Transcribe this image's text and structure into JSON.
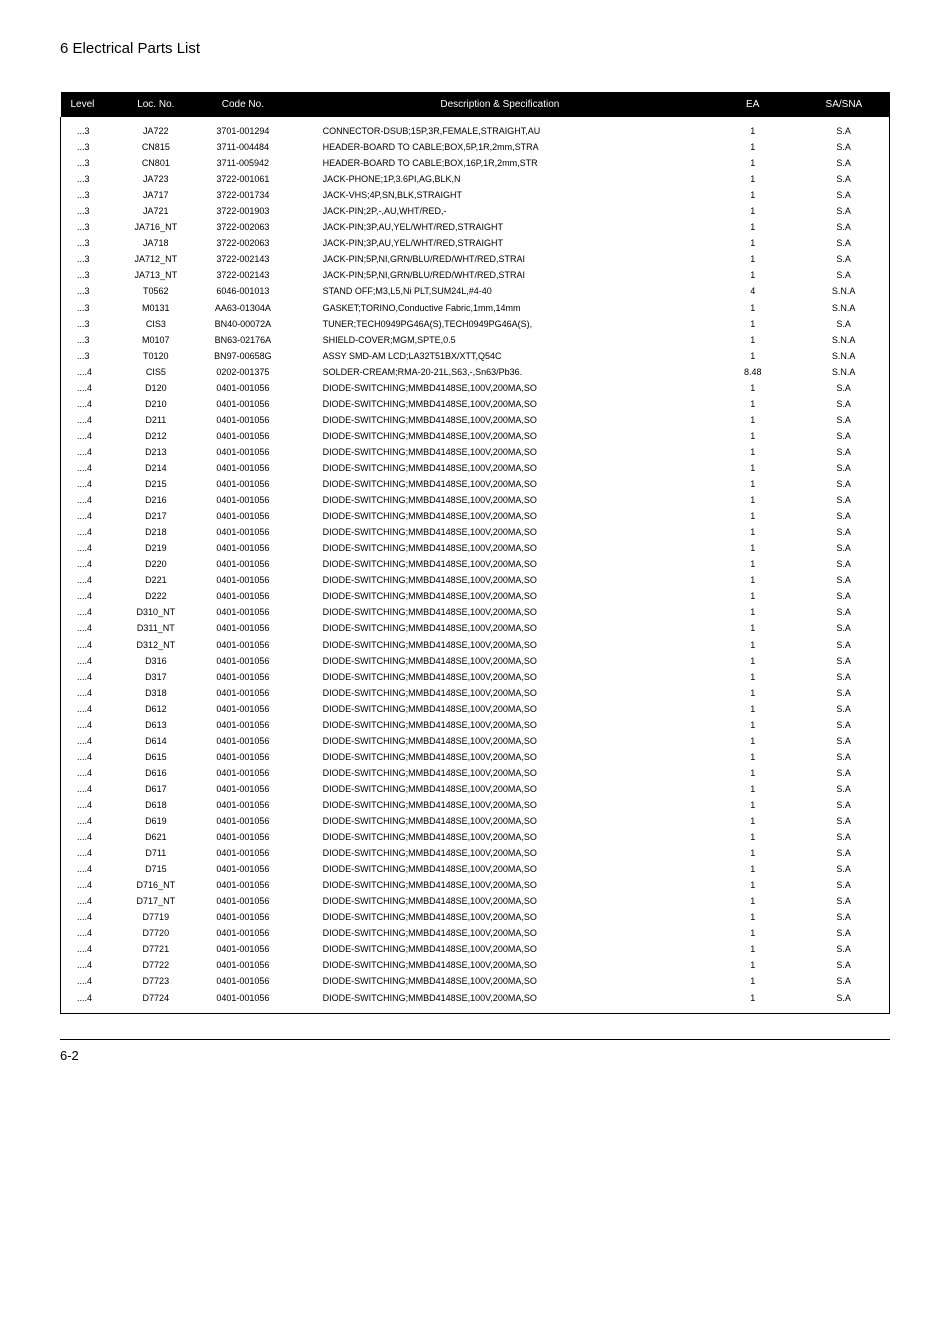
{
  "page": {
    "title": "6 Electrical Parts List",
    "footer": "6-2"
  },
  "table": {
    "columns": [
      "Level",
      "Loc. No.",
      "Code No.",
      "Description & Specification",
      "EA",
      "SA/SNA"
    ],
    "rows": [
      [
        "...3",
        "JA722",
        "3701-001294",
        "CONNECTOR-DSUB;15P,3R,FEMALE,STRAIGHT,AU",
        "1",
        "S.A"
      ],
      [
        "...3",
        "CN815",
        "3711-004484",
        "HEADER-BOARD TO CABLE;BOX,5P,1R,2mm,STRA",
        "1",
        "S.A"
      ],
      [
        "...3",
        "CN801",
        "3711-005942",
        "HEADER-BOARD TO CABLE;BOX,16P,1R,2mm,STR",
        "1",
        "S.A"
      ],
      [
        "...3",
        "JA723",
        "3722-001061",
        "JACK-PHONE;1P,3.6PI,AG,BLK,N",
        "1",
        "S.A"
      ],
      [
        "...3",
        "JA717",
        "3722-001734",
        "JACK-VHS;4P,SN,BLK,STRAIGHT",
        "1",
        "S.A"
      ],
      [
        "...3",
        "JA721",
        "3722-001903",
        "JACK-PIN;2P,-,AU,WHT/RED,-",
        "1",
        "S.A"
      ],
      [
        "...3",
        "JA716_NT",
        "3722-002063",
        "JACK-PIN;3P,AU,YEL/WHT/RED,STRAIGHT",
        "1",
        "S.A"
      ],
      [
        "...3",
        "JA718",
        "3722-002063",
        "JACK-PIN;3P,AU,YEL/WHT/RED,STRAIGHT",
        "1",
        "S.A"
      ],
      [
        "...3",
        "JA712_NT",
        "3722-002143",
        "JACK-PIN;5P,NI,GRN/BLU/RED/WHT/RED,STRAI",
        "1",
        "S.A"
      ],
      [
        "...3",
        "JA713_NT",
        "3722-002143",
        "JACK-PIN;5P,NI,GRN/BLU/RED/WHT/RED,STRAI",
        "1",
        "S.A"
      ],
      [
        "...3",
        "T0562",
        "6046-001013",
        "STAND OFF;M3,L5,Ni PLT,SUM24L,#4-40",
        "4",
        "S.N.A"
      ],
      [
        "...3",
        "M0131",
        "AA63-01304A",
        "GASKET;TORINO,Conductive Fabric,1mm,14mm",
        "1",
        "S.N.A"
      ],
      [
        "...3",
        "CIS3",
        "BN40-00072A",
        "TUNER;TECH0949PG46A(S),TECH0949PG46A(S),",
        "1",
        "S.A"
      ],
      [
        "...3",
        "M0107",
        "BN63-02176A",
        "SHIELD-COVER;MGM,SPTE,0.5",
        "1",
        "S.N.A"
      ],
      [
        "...3",
        "T0120",
        "BN97-00658G",
        "ASSY SMD-AM LCD;LA32T51BX/XTT,Q54C",
        "1",
        "S.N.A"
      ],
      [
        "....4",
        "CIS5",
        "0202-001375",
        "SOLDER-CREAM;RMA-20-21L,S63,-,Sn63/Pb36.",
        "8.48",
        "S.N.A"
      ],
      [
        "....4",
        "D120",
        "0401-001056",
        "DIODE-SWITCHING;MMBD4148SE,100V,200MA,SO",
        "1",
        "S.A"
      ],
      [
        "....4",
        "D210",
        "0401-001056",
        "DIODE-SWITCHING;MMBD4148SE,100V,200MA,SO",
        "1",
        "S.A"
      ],
      [
        "....4",
        "D211",
        "0401-001056",
        "DIODE-SWITCHING;MMBD4148SE,100V,200MA,SO",
        "1",
        "S.A"
      ],
      [
        "....4",
        "D212",
        "0401-001056",
        "DIODE-SWITCHING;MMBD4148SE,100V,200MA,SO",
        "1",
        "S.A"
      ],
      [
        "....4",
        "D213",
        "0401-001056",
        "DIODE-SWITCHING;MMBD4148SE,100V,200MA,SO",
        "1",
        "S.A"
      ],
      [
        "....4",
        "D214",
        "0401-001056",
        "DIODE-SWITCHING;MMBD4148SE,100V,200MA,SO",
        "1",
        "S.A"
      ],
      [
        "....4",
        "D215",
        "0401-001056",
        "DIODE-SWITCHING;MMBD4148SE,100V,200MA,SO",
        "1",
        "S.A"
      ],
      [
        "....4",
        "D216",
        "0401-001056",
        "DIODE-SWITCHING;MMBD4148SE,100V,200MA,SO",
        "1",
        "S.A"
      ],
      [
        "....4",
        "D217",
        "0401-001056",
        "DIODE-SWITCHING;MMBD4148SE,100V,200MA,SO",
        "1",
        "S.A"
      ],
      [
        "....4",
        "D218",
        "0401-001056",
        "DIODE-SWITCHING;MMBD4148SE,100V,200MA,SO",
        "1",
        "S.A"
      ],
      [
        "....4",
        "D219",
        "0401-001056",
        "DIODE-SWITCHING;MMBD4148SE,100V,200MA,SO",
        "1",
        "S.A"
      ],
      [
        "....4",
        "D220",
        "0401-001056",
        "DIODE-SWITCHING;MMBD4148SE,100V,200MA,SO",
        "1",
        "S.A"
      ],
      [
        "....4",
        "D221",
        "0401-001056",
        "DIODE-SWITCHING;MMBD4148SE,100V,200MA,SO",
        "1",
        "S.A"
      ],
      [
        "....4",
        "D222",
        "0401-001056",
        "DIODE-SWITCHING;MMBD4148SE,100V,200MA,SO",
        "1",
        "S.A"
      ],
      [
        "....4",
        "D310_NT",
        "0401-001056",
        "DIODE-SWITCHING;MMBD4148SE,100V,200MA,SO",
        "1",
        "S.A"
      ],
      [
        "....4",
        "D311_NT",
        "0401-001056",
        "DIODE-SWITCHING;MMBD4148SE,100V,200MA,SO",
        "1",
        "S.A"
      ],
      [
        "....4",
        "D312_NT",
        "0401-001056",
        "DIODE-SWITCHING;MMBD4148SE,100V,200MA,SO",
        "1",
        "S.A"
      ],
      [
        "....4",
        "D316",
        "0401-001056",
        "DIODE-SWITCHING;MMBD4148SE,100V,200MA,SO",
        "1",
        "S.A"
      ],
      [
        "....4",
        "D317",
        "0401-001056",
        "DIODE-SWITCHING;MMBD4148SE,100V,200MA,SO",
        "1",
        "S.A"
      ],
      [
        "....4",
        "D318",
        "0401-001056",
        "DIODE-SWITCHING;MMBD4148SE,100V,200MA,SO",
        "1",
        "S.A"
      ],
      [
        "....4",
        "D612",
        "0401-001056",
        "DIODE-SWITCHING;MMBD4148SE,100V,200MA,SO",
        "1",
        "S.A"
      ],
      [
        "....4",
        "D613",
        "0401-001056",
        "DIODE-SWITCHING;MMBD4148SE,100V,200MA,SO",
        "1",
        "S.A"
      ],
      [
        "....4",
        "D614",
        "0401-001056",
        "DIODE-SWITCHING;MMBD4148SE,100V,200MA,SO",
        "1",
        "S.A"
      ],
      [
        "....4",
        "D615",
        "0401-001056",
        "DIODE-SWITCHING;MMBD4148SE,100V,200MA,SO",
        "1",
        "S.A"
      ],
      [
        "....4",
        "D616",
        "0401-001056",
        "DIODE-SWITCHING;MMBD4148SE,100V,200MA,SO",
        "1",
        "S.A"
      ],
      [
        "....4",
        "D617",
        "0401-001056",
        "DIODE-SWITCHING;MMBD4148SE,100V,200MA,SO",
        "1",
        "S.A"
      ],
      [
        "....4",
        "D618",
        "0401-001056",
        "DIODE-SWITCHING;MMBD4148SE,100V,200MA,SO",
        "1",
        "S.A"
      ],
      [
        "....4",
        "D619",
        "0401-001056",
        "DIODE-SWITCHING;MMBD4148SE,100V,200MA,SO",
        "1",
        "S.A"
      ],
      [
        "....4",
        "D621",
        "0401-001056",
        "DIODE-SWITCHING;MMBD4148SE,100V,200MA,SO",
        "1",
        "S.A"
      ],
      [
        "....4",
        "D711",
        "0401-001056",
        "DIODE-SWITCHING;MMBD4148SE,100V,200MA,SO",
        "1",
        "S.A"
      ],
      [
        "....4",
        "D715",
        "0401-001056",
        "DIODE-SWITCHING;MMBD4148SE,100V,200MA,SO",
        "1",
        "S.A"
      ],
      [
        "....4",
        "D716_NT",
        "0401-001056",
        "DIODE-SWITCHING;MMBD4148SE,100V,200MA,SO",
        "1",
        "S.A"
      ],
      [
        "....4",
        "D717_NT",
        "0401-001056",
        "DIODE-SWITCHING;MMBD4148SE,100V,200MA,SO",
        "1",
        "S.A"
      ],
      [
        "....4",
        "D7719",
        "0401-001056",
        "DIODE-SWITCHING;MMBD4148SE,100V,200MA,SO",
        "1",
        "S.A"
      ],
      [
        "....4",
        "D7720",
        "0401-001056",
        "DIODE-SWITCHING;MMBD4148SE,100V,200MA,SO",
        "1",
        "S.A"
      ],
      [
        "....4",
        "D7721",
        "0401-001056",
        "DIODE-SWITCHING;MMBD4148SE,100V,200MA,SO",
        "1",
        "S.A"
      ],
      [
        "....4",
        "D7722",
        "0401-001056",
        "DIODE-SWITCHING;MMBD4148SE,100V,200MA,SO",
        "1",
        "S.A"
      ],
      [
        "....4",
        "D7723",
        "0401-001056",
        "DIODE-SWITCHING;MMBD4148SE,100V,200MA,SO",
        "1",
        "S.A"
      ],
      [
        "....4",
        "D7724",
        "0401-001056",
        "DIODE-SWITCHING;MMBD4148SE,100V,200MA,SO",
        "1",
        "S.A"
      ]
    ]
  }
}
